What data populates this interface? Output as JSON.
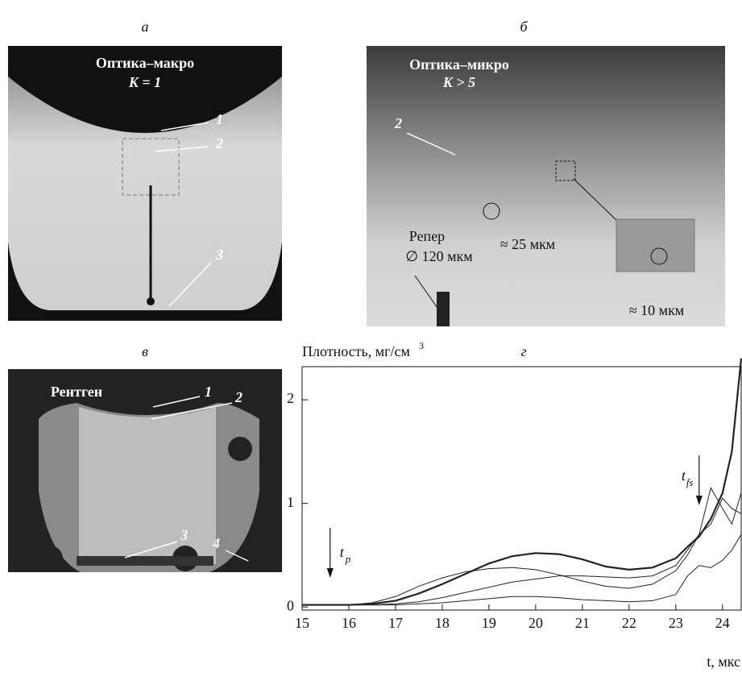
{
  "panels": [
    {
      "label": "а",
      "texts": [
        "Оптика–макро",
        "K = 1",
        "1",
        "2",
        "3"
      ]
    },
    {
      "label": "б",
      "texts": [
        "Оптика–микро",
        "K > 5",
        "2",
        "Репер",
        "∅ 120 мкм",
        "≈ 25 мкм",
        "≈ 10 мкм"
      ]
    },
    {
      "label": "в",
      "texts": [
        "Рентген",
        "1",
        "2",
        "3",
        "4"
      ]
    }
  ],
  "chart_data": {
    "type": "line",
    "panel_label": "г",
    "y_label": "Плотность, мг/см",
    "y_label_sup": "3",
    "x_label": "t, мкс",
    "x": [
      15,
      15.5,
      16,
      16.5,
      17,
      17.5,
      18,
      18.5,
      19,
      19.5,
      20,
      20.5,
      21,
      21.5,
      22,
      22.5,
      23,
      23.25,
      23.5,
      23.75,
      24,
      24.2,
      24.4
    ],
    "series": [
      {
        "color": "#222",
        "width": 2.2,
        "values": [
          0.02,
          0.02,
          0.02,
          0.03,
          0.06,
          0.13,
          0.22,
          0.32,
          0.42,
          0.49,
          0.52,
          0.51,
          0.46,
          0.39,
          0.36,
          0.38,
          0.47,
          0.58,
          0.68,
          0.85,
          1.1,
          1.5,
          2.4
        ]
      },
      {
        "color": "#222",
        "width": 1,
        "values": [
          0.02,
          0.02,
          0.02,
          0.04,
          0.1,
          0.2,
          0.28,
          0.34,
          0.37,
          0.38,
          0.36,
          0.31,
          0.25,
          0.2,
          0.18,
          0.22,
          0.35,
          0.5,
          0.7,
          1.15,
          0.95,
          0.8,
          1.1
        ]
      },
      {
        "color": "#222",
        "width": 1,
        "values": [
          0.02,
          0.02,
          0.02,
          0.02,
          0.03,
          0.05,
          0.09,
          0.14,
          0.19,
          0.24,
          0.27,
          0.3,
          0.3,
          0.29,
          0.28,
          0.3,
          0.4,
          0.55,
          0.7,
          0.8,
          1.05,
          0.95,
          0.9
        ]
      },
      {
        "color": "#222",
        "width": 1,
        "values": [
          0.02,
          0.02,
          0.02,
          0.02,
          0.02,
          0.03,
          0.04,
          0.06,
          0.08,
          0.1,
          0.1,
          0.09,
          0.07,
          0.06,
          0.05,
          0.06,
          0.12,
          0.3,
          0.4,
          0.38,
          0.45,
          0.55,
          0.7
        ]
      }
    ],
    "annotations": [
      {
        "text": "t",
        "sub": "p",
        "x": 15.6
      },
      {
        "text": "t",
        "sub": "fs",
        "x": 23.5
      }
    ],
    "xlim": [
      15,
      24.4
    ],
    "ylim": [
      -0.03,
      2.32
    ],
    "xticks": [
      15,
      16,
      17,
      18,
      19,
      20,
      21,
      22,
      23,
      24
    ],
    "yticks": [
      0,
      1,
      2
    ]
  }
}
